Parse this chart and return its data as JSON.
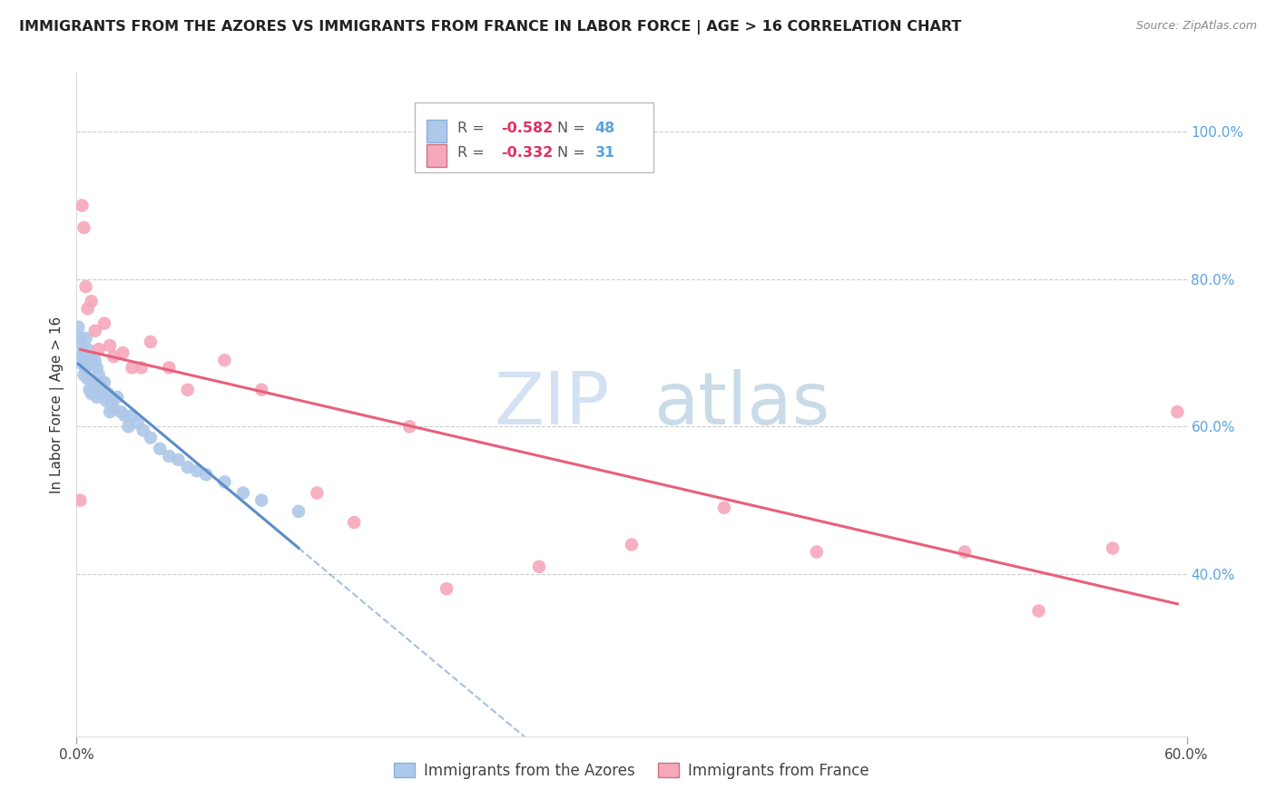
{
  "title": "IMMIGRANTS FROM THE AZORES VS IMMIGRANTS FROM FRANCE IN LABOR FORCE | AGE > 16 CORRELATION CHART",
  "source": "Source: ZipAtlas.com",
  "ylabel": "In Labor Force | Age > 16",
  "xlim": [
    0.0,
    0.6
  ],
  "ylim": [
    0.18,
    1.08
  ],
  "yticks": [
    1.0,
    0.8,
    0.6,
    0.4
  ],
  "ytick_labels": [
    "100.0%",
    "80.0%",
    "60.0%",
    "40.0%"
  ],
  "xtick_left_label": "0.0%",
  "xtick_right_label": "60.0%",
  "legend_azores_R": "-0.582",
  "legend_azores_N": "48",
  "legend_france_R": "-0.332",
  "legend_france_N": "31",
  "color_azores": "#adc8e8",
  "color_france": "#f5a8bb",
  "color_azores_line": "#5b8ec4",
  "color_france_line": "#e8607a",
  "azores_x": [
    0.001,
    0.002,
    0.002,
    0.003,
    0.003,
    0.004,
    0.004,
    0.005,
    0.005,
    0.006,
    0.006,
    0.007,
    0.007,
    0.008,
    0.008,
    0.009,
    0.009,
    0.01,
    0.01,
    0.011,
    0.011,
    0.012,
    0.013,
    0.014,
    0.015,
    0.016,
    0.017,
    0.018,
    0.019,
    0.02,
    0.022,
    0.024,
    0.026,
    0.028,
    0.03,
    0.033,
    0.036,
    0.04,
    0.045,
    0.05,
    0.055,
    0.06,
    0.065,
    0.07,
    0.08,
    0.09,
    0.1,
    0.12
  ],
  "azores_y": [
    0.735,
    0.72,
    0.695,
    0.71,
    0.685,
    0.7,
    0.67,
    0.72,
    0.68,
    0.705,
    0.665,
    0.69,
    0.65,
    0.695,
    0.645,
    0.685,
    0.66,
    0.69,
    0.65,
    0.68,
    0.64,
    0.67,
    0.655,
    0.645,
    0.66,
    0.635,
    0.645,
    0.62,
    0.635,
    0.625,
    0.64,
    0.62,
    0.615,
    0.6,
    0.615,
    0.605,
    0.595,
    0.585,
    0.57,
    0.56,
    0.555,
    0.545,
    0.54,
    0.535,
    0.525,
    0.51,
    0.5,
    0.485
  ],
  "france_x": [
    0.002,
    0.003,
    0.004,
    0.005,
    0.006,
    0.008,
    0.01,
    0.012,
    0.015,
    0.018,
    0.02,
    0.025,
    0.03,
    0.035,
    0.04,
    0.05,
    0.06,
    0.08,
    0.1,
    0.13,
    0.15,
    0.18,
    0.2,
    0.25,
    0.3,
    0.35,
    0.4,
    0.48,
    0.52,
    0.56,
    0.595
  ],
  "france_y": [
    0.5,
    0.9,
    0.87,
    0.79,
    0.76,
    0.77,
    0.73,
    0.705,
    0.74,
    0.71,
    0.695,
    0.7,
    0.68,
    0.68,
    0.715,
    0.68,
    0.65,
    0.69,
    0.65,
    0.51,
    0.47,
    0.6,
    0.38,
    0.41,
    0.44,
    0.49,
    0.43,
    0.43,
    0.35,
    0.435,
    0.62
  ],
  "azores_line_x_start": 0.001,
  "azores_line_x_end_solid": 0.12,
  "france_line_x_start": 0.002,
  "france_line_x_end_solid": 0.595
}
